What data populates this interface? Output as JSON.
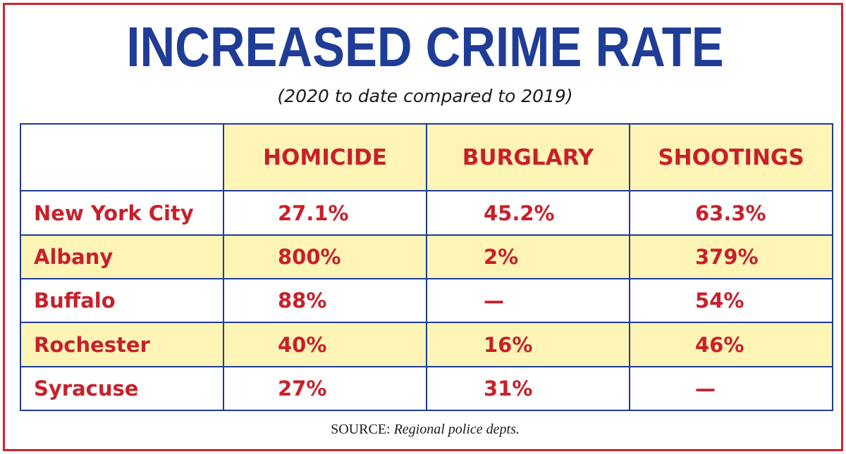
{
  "title": "INCREASED CRIME RATE",
  "subtitle": "(2020 to date compared to 2019)",
  "colors": {
    "title": "#1f3c96",
    "values": "#c8202b",
    "shade": "#fdf4b5",
    "frame": "#d2232a",
    "grid": "#1f3c96"
  },
  "table": {
    "headers": [
      "",
      "HOMICIDE",
      "BURGLARY",
      "SHOOTINGS"
    ],
    "rows": [
      {
        "city": "New York City",
        "homicide": "27.1%",
        "burglary": "45.2%",
        "shootings": "63.3%"
      },
      {
        "city": "Albany",
        "homicide": "800%",
        "burglary": "2%",
        "shootings": "379%"
      },
      {
        "city": "Buffalo",
        "homicide": "88%",
        "burglary": "—",
        "shootings": "54%"
      },
      {
        "city": "Rochester",
        "homicide": "40%",
        "burglary": "16%",
        "shootings": "46%"
      },
      {
        "city": "Syracuse",
        "homicide": "27%",
        "burglary": "31%",
        "shootings": "—"
      }
    ]
  },
  "source": {
    "label": "SOURCE:",
    "text": "Regional police depts."
  },
  "chart_data": {
    "type": "table",
    "title": "INCREASED CRIME RATE",
    "subtitle": "(2020 to date compared to 2019)",
    "columns": [
      "HOMICIDE",
      "BURGLARY",
      "SHOOTINGS"
    ],
    "rows": [
      "New York City",
      "Albany",
      "Buffalo",
      "Rochester",
      "Syracuse"
    ],
    "values": [
      [
        "27.1%",
        "45.2%",
        "63.3%"
      ],
      [
        "800%",
        "2%",
        "379%"
      ],
      [
        "88%",
        "—",
        "54%"
      ],
      [
        "40%",
        "16%",
        "46%"
      ],
      [
        "27%",
        "31%",
        "—"
      ]
    ],
    "source": "SOURCE: Regional police depts."
  }
}
